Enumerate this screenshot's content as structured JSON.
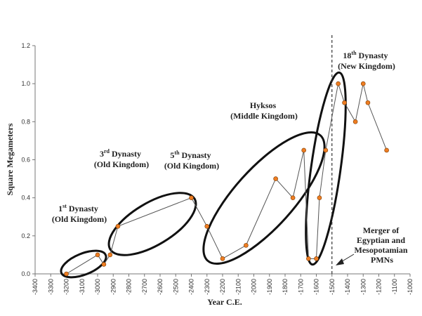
{
  "chart_data": {
    "type": "line",
    "xlabel": "Year C.E.",
    "ylabel": "Square Megameters",
    "xlim": [
      -3400,
      -1000
    ],
    "ylim": [
      0,
      1.2
    ],
    "x_ticks": [
      -3400,
      -3300,
      -3200,
      -3100,
      -3000,
      -2900,
      -2800,
      -2700,
      -2600,
      -2500,
      -2400,
      -2300,
      -2200,
      -2100,
      -2000,
      -1900,
      -1800,
      -1700,
      -1600,
      -1500,
      -1400,
      -1300,
      -1200,
      -1100,
      -1000
    ],
    "y_ticks": [
      0,
      0.2,
      0.4,
      0.6,
      0.8,
      1.0,
      1.2
    ],
    "y_tick_labels": [
      "0.0",
      "0.2",
      "0.4",
      "0.6",
      "0.8",
      "1.0",
      "1.2"
    ],
    "grid": false,
    "line_color": "#555555",
    "marker_color": "#ee7d22",
    "marker_stroke": "#7a3a00",
    "series": [
      {
        "points": [
          {
            "x": -3200,
            "y": 0.0
          },
          {
            "x": -3000,
            "y": 0.1
          },
          {
            "x": -2960,
            "y": 0.05
          },
          {
            "x": -2920,
            "y": 0.1
          },
          {
            "x": -2870,
            "y": 0.25
          },
          {
            "x": -2400,
            "y": 0.4
          },
          {
            "x": -2300,
            "y": 0.25
          },
          {
            "x": -2200,
            "y": 0.08
          },
          {
            "x": -2050,
            "y": 0.15
          },
          {
            "x": -1860,
            "y": 0.5
          },
          {
            "x": -1750,
            "y": 0.4
          },
          {
            "x": -1680,
            "y": 0.65
          },
          {
            "x": -1650,
            "y": 0.08
          },
          {
            "x": -1600,
            "y": 0.08
          },
          {
            "x": -1580,
            "y": 0.4
          },
          {
            "x": -1540,
            "y": 0.65
          },
          {
            "x": -1460,
            "y": 1.0
          },
          {
            "x": -1420,
            "y": 0.9
          },
          {
            "x": -1350,
            "y": 0.8
          },
          {
            "x": -1300,
            "y": 1.0
          },
          {
            "x": -1270,
            "y": 0.9
          },
          {
            "x": -1150,
            "y": 0.65
          }
        ]
      }
    ],
    "reference_line": {
      "x": -1500,
      "style": "dashed"
    },
    "annotations": [
      {
        "id": "first",
        "lines": [
          "1st Dynasty",
          "(Old Kingdom)"
        ],
        "sup": {
          "line": 0,
          "base": "1",
          "sup": "st",
          "rest": " Dynasty"
        }
      },
      {
        "id": "third",
        "lines": [
          "3rd Dynasty",
          "(Old Kingdom)"
        ],
        "sup": {
          "line": 0,
          "base": "3",
          "sup": "rd",
          "rest": " Dynasty"
        }
      },
      {
        "id": "fifth",
        "lines": [
          "5th Dynasty",
          "(Old Kingdom)"
        ],
        "sup": {
          "line": 0,
          "base": "5",
          "sup": "th",
          "rest": " Dynasty"
        }
      },
      {
        "id": "hyksos",
        "lines": [
          "Hyksos",
          "(Middle Kingdom)"
        ]
      },
      {
        "id": "eighteenth",
        "lines": [
          "18th Dynasty",
          "(New Kingdom)"
        ],
        "sup": {
          "line": 0,
          "base": "18",
          "sup": "th",
          "rest": " Dynasty"
        }
      },
      {
        "id": "merger",
        "lines": [
          "Merger of",
          "Egyptian and",
          "Mesopotamian",
          "PMNs"
        ]
      }
    ]
  }
}
